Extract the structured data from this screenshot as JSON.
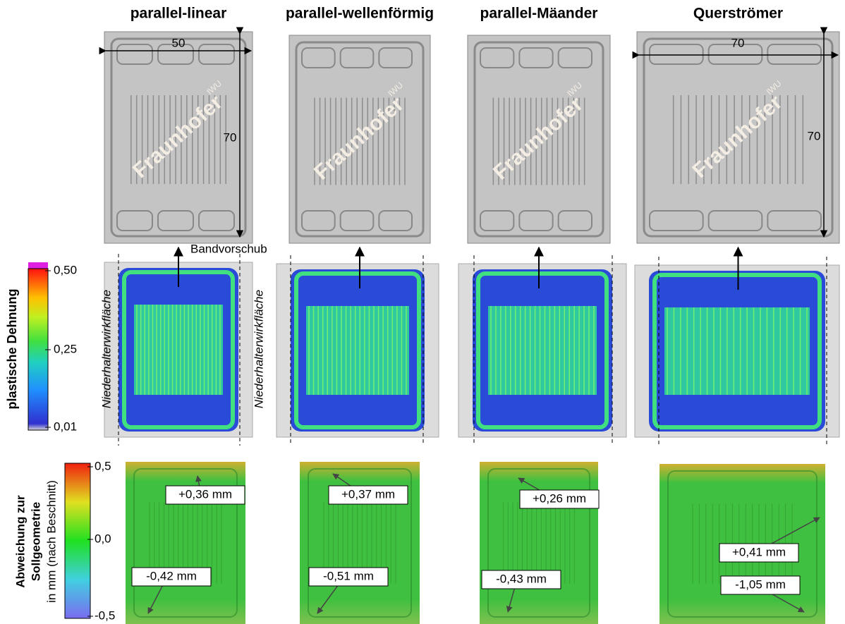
{
  "columns": [
    {
      "title": "parallel-linear",
      "deviation_max": "+0,36 mm",
      "deviation_min": "-0,42 mm"
    },
    {
      "title": "parallel-wellenförmig",
      "deviation_max": "+0,37 mm",
      "deviation_min": "-0,51 mm"
    },
    {
      "title": "parallel-Mäander",
      "deviation_max": "+0,26 mm",
      "deviation_min": "-0,43 mm"
    },
    {
      "title": "Querströmer",
      "deviation_max": "+0,41 mm",
      "deviation_min": "-1,05 mm"
    }
  ],
  "dimensions": {
    "width_left": "50",
    "height_left": "70",
    "width_right": "70",
    "height_right": "70"
  },
  "logo": "Fraunhofer",
  "logo_sub": "IWU",
  "feed_label": "Bandvorschub",
  "holder_label": "Niederhalterwirkfläche",
  "strain_scale": {
    "title": "plastische Dehnung",
    "ticks": [
      "0,50",
      "0,25",
      "0,01"
    ]
  },
  "deviation_scale": {
    "title_line1": "Abweichung zur",
    "title_line2": "Sollgeometrie",
    "unit": "in mm (nach Beschnitt)",
    "ticks": [
      "0,5",
      "0,0",
      "-0,5"
    ]
  }
}
